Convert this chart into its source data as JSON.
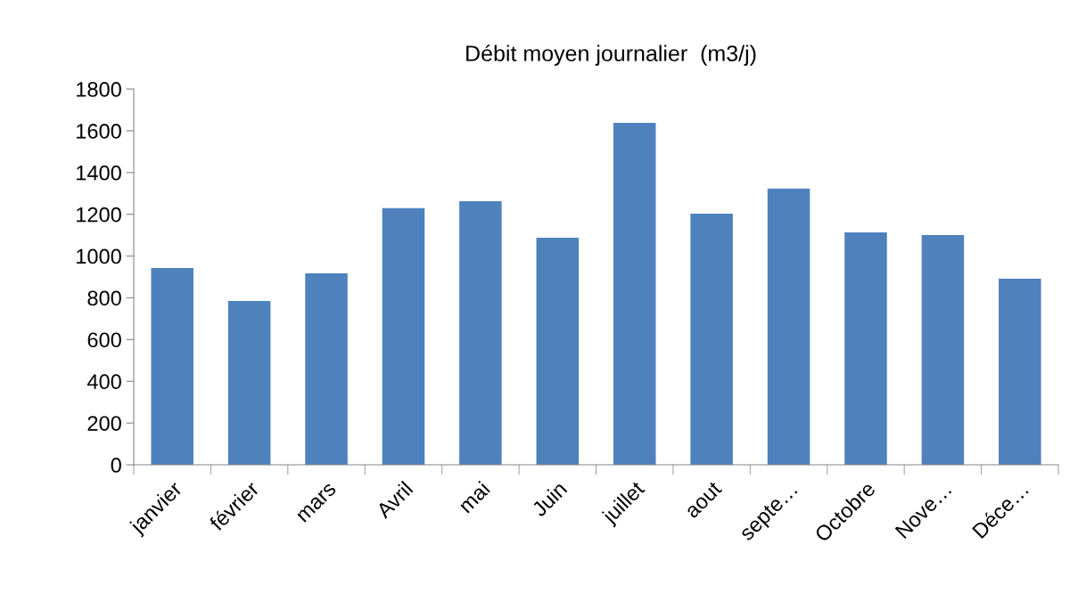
{
  "chart_data": {
    "type": "bar",
    "title": "Débit moyen journalier  (m3/j)",
    "categories": [
      "janvier",
      "février",
      "mars",
      "Avril",
      "mai",
      "Juin",
      "juillet",
      "aout",
      "septe…",
      "Octobre",
      "Nove…",
      "Déce…"
    ],
    "values": [
      943,
      785,
      917,
      1229,
      1263,
      1088,
      1638,
      1203,
      1323,
      1113,
      1101,
      892
    ],
    "color": "#4f81bd",
    "ylim": [
      0,
      1800
    ],
    "yticks": [
      0,
      200,
      400,
      600,
      800,
      1000,
      1200,
      1400,
      1600,
      1800
    ],
    "grid": false,
    "legend": false
  }
}
